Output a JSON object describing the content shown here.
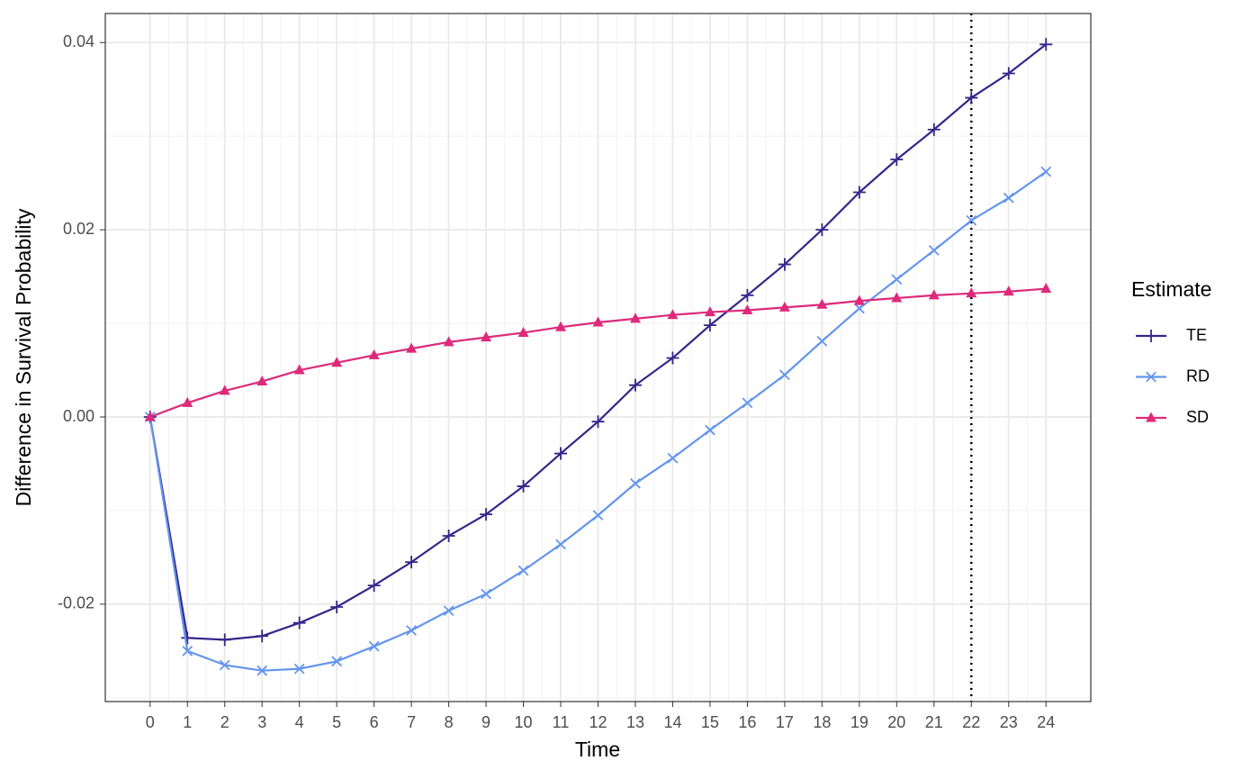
{
  "chart_data": {
    "type": "line",
    "x_label": "Time",
    "y_label": "Difference in Survival Probability",
    "legend_title": "Estimate",
    "legend_position": "right",
    "grid": true,
    "x": [
      0,
      1,
      2,
      3,
      4,
      5,
      6,
      7,
      8,
      9,
      10,
      11,
      12,
      13,
      14,
      15,
      16,
      17,
      18,
      19,
      20,
      21,
      22,
      23,
      24
    ],
    "series": [
      {
        "name": "TE",
        "color": "#35268a",
        "marker": "plus",
        "values": [
          0,
          -0.0236,
          -0.0238,
          -0.0234,
          -0.022,
          -0.0203,
          -0.018,
          -0.0155,
          -0.0127,
          -0.0104,
          -0.0074,
          -0.0039,
          -0.0005,
          0.0034,
          0.0063,
          0.0098,
          0.013,
          0.0163,
          0.02,
          0.024,
          0.0275,
          0.0307,
          0.0341,
          0.0367,
          0.0398
        ]
      },
      {
        "name": "RD",
        "color": "#6495ed",
        "marker": "cross",
        "values": [
          0,
          -0.025,
          -0.0265,
          -0.0271,
          -0.0269,
          -0.0261,
          -0.0245,
          -0.0228,
          -0.0207,
          -0.0189,
          -0.0164,
          -0.0136,
          -0.0105,
          -0.0071,
          -0.0044,
          -0.0014,
          0.0015,
          0.0045,
          0.0081,
          0.0116,
          0.0147,
          0.0178,
          0.021,
          0.0234,
          0.0262
        ]
      },
      {
        "name": "SD",
        "color": "#dd2a7b",
        "marker": "triangle",
        "values": [
          0,
          0.0015,
          0.0028,
          0.0038,
          0.005,
          0.0058,
          0.0066,
          0.0073,
          0.008,
          0.0085,
          0.009,
          0.0096,
          0.0101,
          0.0105,
          0.0109,
          0.0112,
          0.0114,
          0.0117,
          0.012,
          0.0124,
          0.0127,
          0.013,
          0.0132,
          0.0134,
          0.0137
        ]
      }
    ],
    "xlim": [
      -1.2,
      25.2
    ],
    "xticks": [
      0,
      1,
      2,
      3,
      4,
      5,
      6,
      7,
      8,
      9,
      10,
      11,
      12,
      13,
      14,
      15,
      16,
      17,
      18,
      19,
      20,
      21,
      22,
      23,
      24
    ],
    "ylim": [
      -0.0304,
      0.0431
    ],
    "yticks": [
      -0.02,
      {
        "value": 0,
        "label": "0.00"
      },
      0.02,
      0.04
    ],
    "vline": {
      "x": 22,
      "color": "#000000",
      "style": "dotted"
    }
  }
}
